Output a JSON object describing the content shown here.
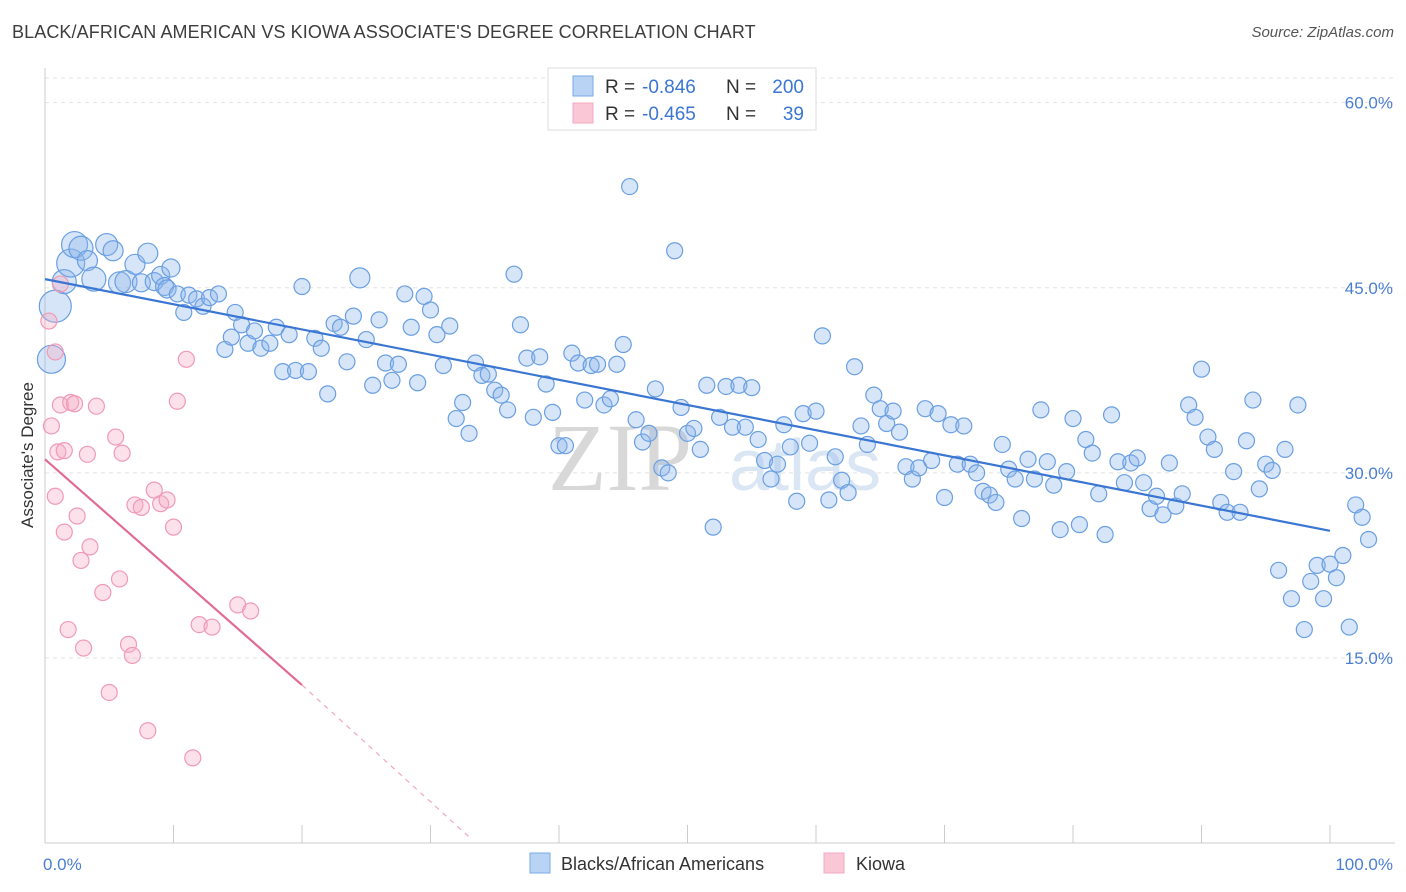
{
  "title": "BLACK/AFRICAN AMERICAN VS KIOWA ASSOCIATE'S DEGREE CORRELATION CHART",
  "source": "Source: ZipAtlas.com",
  "watermark": "ZIPatlas",
  "colors": {
    "blue": "#7aaae8",
    "blue_line": "#3a76d2",
    "pink": "#f4a8c0",
    "pink_line": "#e06b95",
    "tick_text": "#4a7fd0"
  },
  "legend": {
    "r_label": "R =",
    "n_label": "N =",
    "rows": [
      {
        "r": "-0.846",
        "n": "200"
      },
      {
        "r": "-0.465",
        "n": "39"
      }
    ]
  },
  "chart_data": {
    "type": "scatter",
    "xlabel": "",
    "ylabel": "Associate's Degree",
    "xlim": [
      0,
      100
    ],
    "ylim": [
      0,
      62
    ],
    "x_tick_labels": [
      "0.0%",
      "100.0%"
    ],
    "y_ticks": [
      15,
      30,
      45,
      60
    ],
    "y_tick_labels": [
      "15.0%",
      "30.0%",
      "45.0%",
      "60.0%"
    ],
    "series": [
      {
        "name": "Blacks/African Americans",
        "color": "#7aaae8",
        "trend": {
          "x": [
            0,
            100
          ],
          "y": [
            45.7,
            25.3
          ],
          "dashed_after": null
        },
        "points": [
          [
            0.5,
            39.2,
            14
          ],
          [
            0.8,
            43.5,
            16
          ],
          [
            1.5,
            45.5,
            12
          ],
          [
            2,
            47,
            14
          ],
          [
            2.3,
            48.5,
            13
          ],
          [
            2.8,
            48.2,
            12
          ],
          [
            3.3,
            47.2,
            10
          ],
          [
            3.8,
            45.7,
            12
          ],
          [
            4.8,
            48.5,
            11
          ],
          [
            5.3,
            48,
            10
          ],
          [
            5.8,
            45.4,
            11
          ],
          [
            6.3,
            45.5,
            11
          ],
          [
            7,
            46.9,
            10
          ],
          [
            7.5,
            45.4,
            9
          ],
          [
            8,
            47.8,
            10
          ],
          [
            8.5,
            45.5,
            9
          ],
          [
            9,
            46,
            9
          ],
          [
            9.3,
            45.1,
            9
          ],
          [
            9.5,
            44.9,
            9
          ],
          [
            9.8,
            46.6,
            9
          ],
          [
            10.3,
            44.5,
            8
          ],
          [
            10.8,
            43,
            8
          ],
          [
            11.2,
            44.4,
            8
          ],
          [
            11.8,
            44.1,
            8
          ],
          [
            12.3,
            43.5,
            8
          ],
          [
            12.8,
            44.2,
            8
          ],
          [
            13.5,
            44.5,
            8
          ],
          [
            14,
            40,
            8
          ],
          [
            14.5,
            41,
            8
          ],
          [
            14.8,
            43,
            8
          ],
          [
            15.3,
            42,
            8
          ],
          [
            15.8,
            40.5,
            8
          ],
          [
            16.3,
            41.5,
            8
          ],
          [
            16.8,
            40.1,
            8
          ],
          [
            17.5,
            40.5,
            8
          ],
          [
            18,
            41.8,
            8
          ],
          [
            18.5,
            38.2,
            8
          ],
          [
            19,
            41.2,
            8
          ],
          [
            19.5,
            38.3,
            8
          ],
          [
            20,
            45.1,
            8
          ],
          [
            20.5,
            38.2,
            8
          ],
          [
            21,
            40.9,
            8
          ],
          [
            21.5,
            40.1,
            8
          ],
          [
            22,
            36.4,
            8
          ],
          [
            22.5,
            42.1,
            8
          ],
          [
            23,
            41.8,
            8
          ],
          [
            23.5,
            39,
            8
          ],
          [
            24,
            42.7,
            8
          ],
          [
            24.5,
            45.8,
            10
          ],
          [
            25,
            40.8,
            8
          ],
          [
            25.5,
            37.1,
            8
          ],
          [
            26,
            42.4,
            8
          ],
          [
            26.5,
            38.9,
            8
          ],
          [
            27,
            37.5,
            8
          ],
          [
            27.5,
            38.8,
            8
          ],
          [
            28,
            44.5,
            8
          ],
          [
            28.5,
            41.8,
            8
          ],
          [
            29,
            37.3,
            8
          ],
          [
            29.5,
            44.3,
            8
          ],
          [
            30,
            43.2,
            8
          ],
          [
            30.5,
            41.2,
            8
          ],
          [
            31,
            38.7,
            8
          ],
          [
            31.5,
            41.9,
            8
          ],
          [
            32,
            34.4,
            8
          ],
          [
            32.5,
            35.7,
            8
          ],
          [
            33,
            33.2,
            8
          ],
          [
            33.5,
            38.9,
            8
          ],
          [
            34,
            37.9,
            8
          ],
          [
            34.5,
            38,
            8
          ],
          [
            35,
            36.7,
            8
          ],
          [
            35.5,
            36.3,
            8
          ],
          [
            36,
            35.1,
            8
          ],
          [
            36.5,
            46.1,
            8
          ],
          [
            37,
            42,
            8
          ],
          [
            37.5,
            39.3,
            8
          ],
          [
            38,
            34.5,
            8
          ],
          [
            38.5,
            39.4,
            8
          ],
          [
            39,
            37.2,
            8
          ],
          [
            39.5,
            34.9,
            8
          ],
          [
            40,
            32.2,
            8
          ],
          [
            40.5,
            32.2,
            8
          ],
          [
            41,
            39.7,
            8
          ],
          [
            41.5,
            38.9,
            8
          ],
          [
            42,
            35.9,
            8
          ],
          [
            42.5,
            38.7,
            8
          ],
          [
            43,
            38.8,
            8
          ],
          [
            43.5,
            35.5,
            8
          ],
          [
            44,
            36,
            8
          ],
          [
            44.5,
            38.8,
            8
          ],
          [
            45,
            40.4,
            8
          ],
          [
            45.5,
            53.2,
            8
          ],
          [
            46,
            34.3,
            8
          ],
          [
            46.5,
            32.5,
            8
          ],
          [
            47,
            33.2,
            8
          ],
          [
            47.5,
            36.8,
            8
          ],
          [
            48,
            30.4,
            8
          ],
          [
            48.5,
            30,
            8
          ],
          [
            49,
            48,
            8
          ],
          [
            49.5,
            35.3,
            8
          ],
          [
            50,
            33.2,
            8
          ],
          [
            50.5,
            33.6,
            8
          ],
          [
            51,
            31.9,
            8
          ],
          [
            51.5,
            37.1,
            8
          ],
          [
            52,
            25.6,
            8
          ],
          [
            52.5,
            34.5,
            8
          ],
          [
            53,
            37,
            8
          ],
          [
            53.5,
            33.7,
            8
          ],
          [
            54,
            37.1,
            8
          ],
          [
            54.5,
            33.7,
            8
          ],
          [
            55,
            36.9,
            8
          ],
          [
            55.5,
            32.7,
            8
          ],
          [
            56,
            31,
            8
          ],
          [
            56.5,
            29.5,
            8
          ],
          [
            57,
            30.7,
            8
          ],
          [
            57.5,
            33.9,
            8
          ],
          [
            58,
            32.1,
            8
          ],
          [
            58.5,
            27.7,
            8
          ],
          [
            59,
            34.8,
            8
          ],
          [
            59.5,
            32.4,
            8
          ],
          [
            60,
            35,
            8
          ],
          [
            60.5,
            41.1,
            8
          ],
          [
            61,
            27.8,
            8
          ],
          [
            61.5,
            31.3,
            8
          ],
          [
            62,
            29.4,
            8
          ],
          [
            62.5,
            28.4,
            8
          ],
          [
            63,
            38.6,
            8
          ],
          [
            63.5,
            33.8,
            8
          ],
          [
            64,
            32.3,
            8
          ],
          [
            64.5,
            36.3,
            8
          ],
          [
            65,
            35.2,
            8
          ],
          [
            65.5,
            34,
            8
          ],
          [
            66,
            35,
            8
          ],
          [
            66.5,
            33.3,
            8
          ],
          [
            67,
            30.5,
            8
          ],
          [
            67.5,
            29.5,
            8
          ],
          [
            68,
            30.4,
            8
          ],
          [
            68.5,
            35.2,
            8
          ],
          [
            69,
            31,
            8
          ],
          [
            69.5,
            34.8,
            8
          ],
          [
            70,
            28,
            8
          ],
          [
            70.5,
            33.9,
            8
          ],
          [
            71,
            30.7,
            8
          ],
          [
            71.5,
            33.8,
            8
          ],
          [
            72,
            30.7,
            8
          ],
          [
            72.5,
            30,
            8
          ],
          [
            73,
            28.5,
            8
          ],
          [
            73.5,
            28.2,
            8
          ],
          [
            74,
            27.6,
            8
          ],
          [
            74.5,
            32.3,
            8
          ],
          [
            75,
            30.3,
            8
          ],
          [
            75.5,
            29.5,
            8
          ],
          [
            76,
            26.3,
            8
          ],
          [
            76.5,
            31.1,
            8
          ],
          [
            77,
            29.5,
            8
          ],
          [
            77.5,
            35.1,
            8
          ],
          [
            78,
            30.9,
            8
          ],
          [
            78.5,
            29,
            8
          ],
          [
            79,
            25.4,
            8
          ],
          [
            79.5,
            30.1,
            8
          ],
          [
            80,
            34.4,
            8
          ],
          [
            80.5,
            25.8,
            8
          ],
          [
            81,
            32.7,
            8
          ],
          [
            81.5,
            31.6,
            8
          ],
          [
            82,
            28.3,
            8
          ],
          [
            82.5,
            25,
            8
          ],
          [
            83,
            34.7,
            8
          ],
          [
            83.5,
            30.9,
            8
          ],
          [
            84,
            29.2,
            8
          ],
          [
            84.5,
            30.8,
            8
          ],
          [
            85,
            31.2,
            8
          ],
          [
            85.5,
            29.2,
            8
          ],
          [
            86,
            27.1,
            8
          ],
          [
            86.5,
            28.1,
            8
          ],
          [
            87,
            26.6,
            8
          ],
          [
            87.5,
            30.8,
            8
          ],
          [
            88,
            27.3,
            8
          ],
          [
            88.5,
            28.3,
            8
          ],
          [
            89,
            35.5,
            8
          ],
          [
            89.5,
            34.5,
            8
          ],
          [
            90,
            38.4,
            8
          ],
          [
            90.5,
            32.9,
            8
          ],
          [
            91,
            31.9,
            8
          ],
          [
            91.5,
            27.6,
            8
          ],
          [
            92,
            26.8,
            8
          ],
          [
            92.5,
            30.1,
            8
          ],
          [
            93,
            26.8,
            8
          ],
          [
            93.5,
            32.6,
            8
          ],
          [
            94,
            35.9,
            8
          ],
          [
            94.5,
            28.7,
            8
          ],
          [
            95,
            30.7,
            8
          ],
          [
            95.5,
            30.2,
            8
          ],
          [
            96,
            22.1,
            8
          ],
          [
            96.5,
            31.9,
            8
          ],
          [
            97,
            19.8,
            8
          ],
          [
            97.5,
            35.5,
            8
          ],
          [
            98,
            17.3,
            8
          ],
          [
            98.5,
            21.2,
            8
          ],
          [
            99,
            22.5,
            8
          ],
          [
            99.5,
            19.8,
            8
          ],
          [
            100,
            22.6,
            8
          ],
          [
            100.5,
            21.5,
            8
          ],
          [
            101,
            23.3,
            8
          ],
          [
            101.5,
            17.5,
            8
          ],
          [
            102,
            27.4,
            8
          ],
          [
            102.5,
            26.4,
            8
          ],
          [
            103,
            24.6,
            8
          ]
        ]
      },
      {
        "name": "Kiowa",
        "color": "#f4a8c0",
        "trend": {
          "x": [
            0,
            20
          ],
          "y": [
            31.1,
            12.8
          ],
          "dashed_to": [
            33,
            0.5
          ]
        },
        "points": [
          [
            0.3,
            42.3,
            8
          ],
          [
            0.5,
            33.8,
            8
          ],
          [
            0.8,
            28.1,
            8
          ],
          [
            1,
            31.7,
            8
          ],
          [
            1.2,
            35.5,
            8
          ],
          [
            1.5,
            31.8,
            8
          ],
          [
            1.5,
            25.2,
            8
          ],
          [
            1.8,
            17.3,
            8
          ],
          [
            2,
            35.7,
            8
          ],
          [
            2.3,
            35.6,
            8
          ],
          [
            2.5,
            26.5,
            8
          ],
          [
            2.8,
            22.9,
            8
          ],
          [
            3,
            15.8,
            8
          ],
          [
            3.3,
            31.5,
            8
          ],
          [
            3.5,
            24,
            8
          ],
          [
            4,
            35.4,
            8
          ],
          [
            4.5,
            20.3,
            8
          ],
          [
            5,
            12.2,
            8
          ],
          [
            5.5,
            32.9,
            8
          ],
          [
            5.8,
            21.4,
            8
          ],
          [
            6,
            31.6,
            8
          ],
          [
            6.5,
            16.1,
            8
          ],
          [
            6.8,
            15.2,
            8
          ],
          [
            7,
            27.4,
            8
          ],
          [
            7.5,
            27.2,
            8
          ],
          [
            8,
            9.1,
            8
          ],
          [
            8.5,
            28.6,
            8
          ],
          [
            9,
            27.5,
            8
          ],
          [
            9.5,
            27.8,
            8
          ],
          [
            10,
            25.6,
            8
          ],
          [
            10.3,
            35.8,
            8
          ],
          [
            11,
            39.2,
            8
          ],
          [
            11.5,
            6.9,
            8
          ],
          [
            12,
            17.7,
            8
          ],
          [
            13,
            17.5,
            8
          ],
          [
            15,
            19.3,
            8
          ],
          [
            16,
            18.8,
            8
          ],
          [
            1.2,
            45.3,
            8
          ],
          [
            0.8,
            39.8,
            8
          ]
        ]
      }
    ]
  },
  "bottom_legend": [
    "Blacks/African Americans",
    "Kiowa"
  ]
}
